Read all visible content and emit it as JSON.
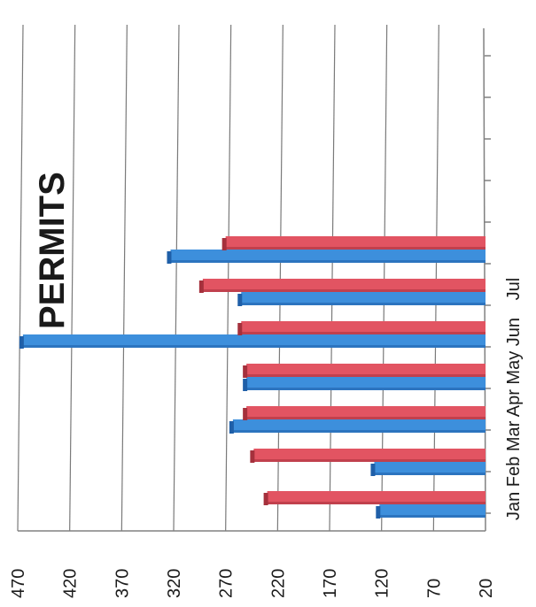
{
  "chart_data": {
    "type": "bar",
    "orientation": "rotated-90",
    "title": "PERMITS",
    "categories": [
      "Jan",
      "Feb",
      "Mar",
      "Apr",
      "May",
      "Jun",
      "Jul"
    ],
    "series": [
      {
        "values": [
          122,
          127,
          263,
          250,
          465,
          255,
          323
        ]
      },
      {
        "values": [
          230,
          243,
          250,
          250,
          255,
          292,
          270
        ]
      }
    ],
    "ylim": [
      20,
      470
    ],
    "yticks": [
      20,
      70,
      120,
      170,
      220,
      270,
      320,
      370,
      420,
      470
    ],
    "grid": true,
    "legend": "none",
    "colors": {
      "series_1": "#3d8fdc",
      "series_1_shade": "#1f5fa8",
      "series_2": "#e25462",
      "series_2_shade": "#a5303c",
      "grid": "#7a7a7a",
      "text": "#1c1c1c"
    }
  }
}
